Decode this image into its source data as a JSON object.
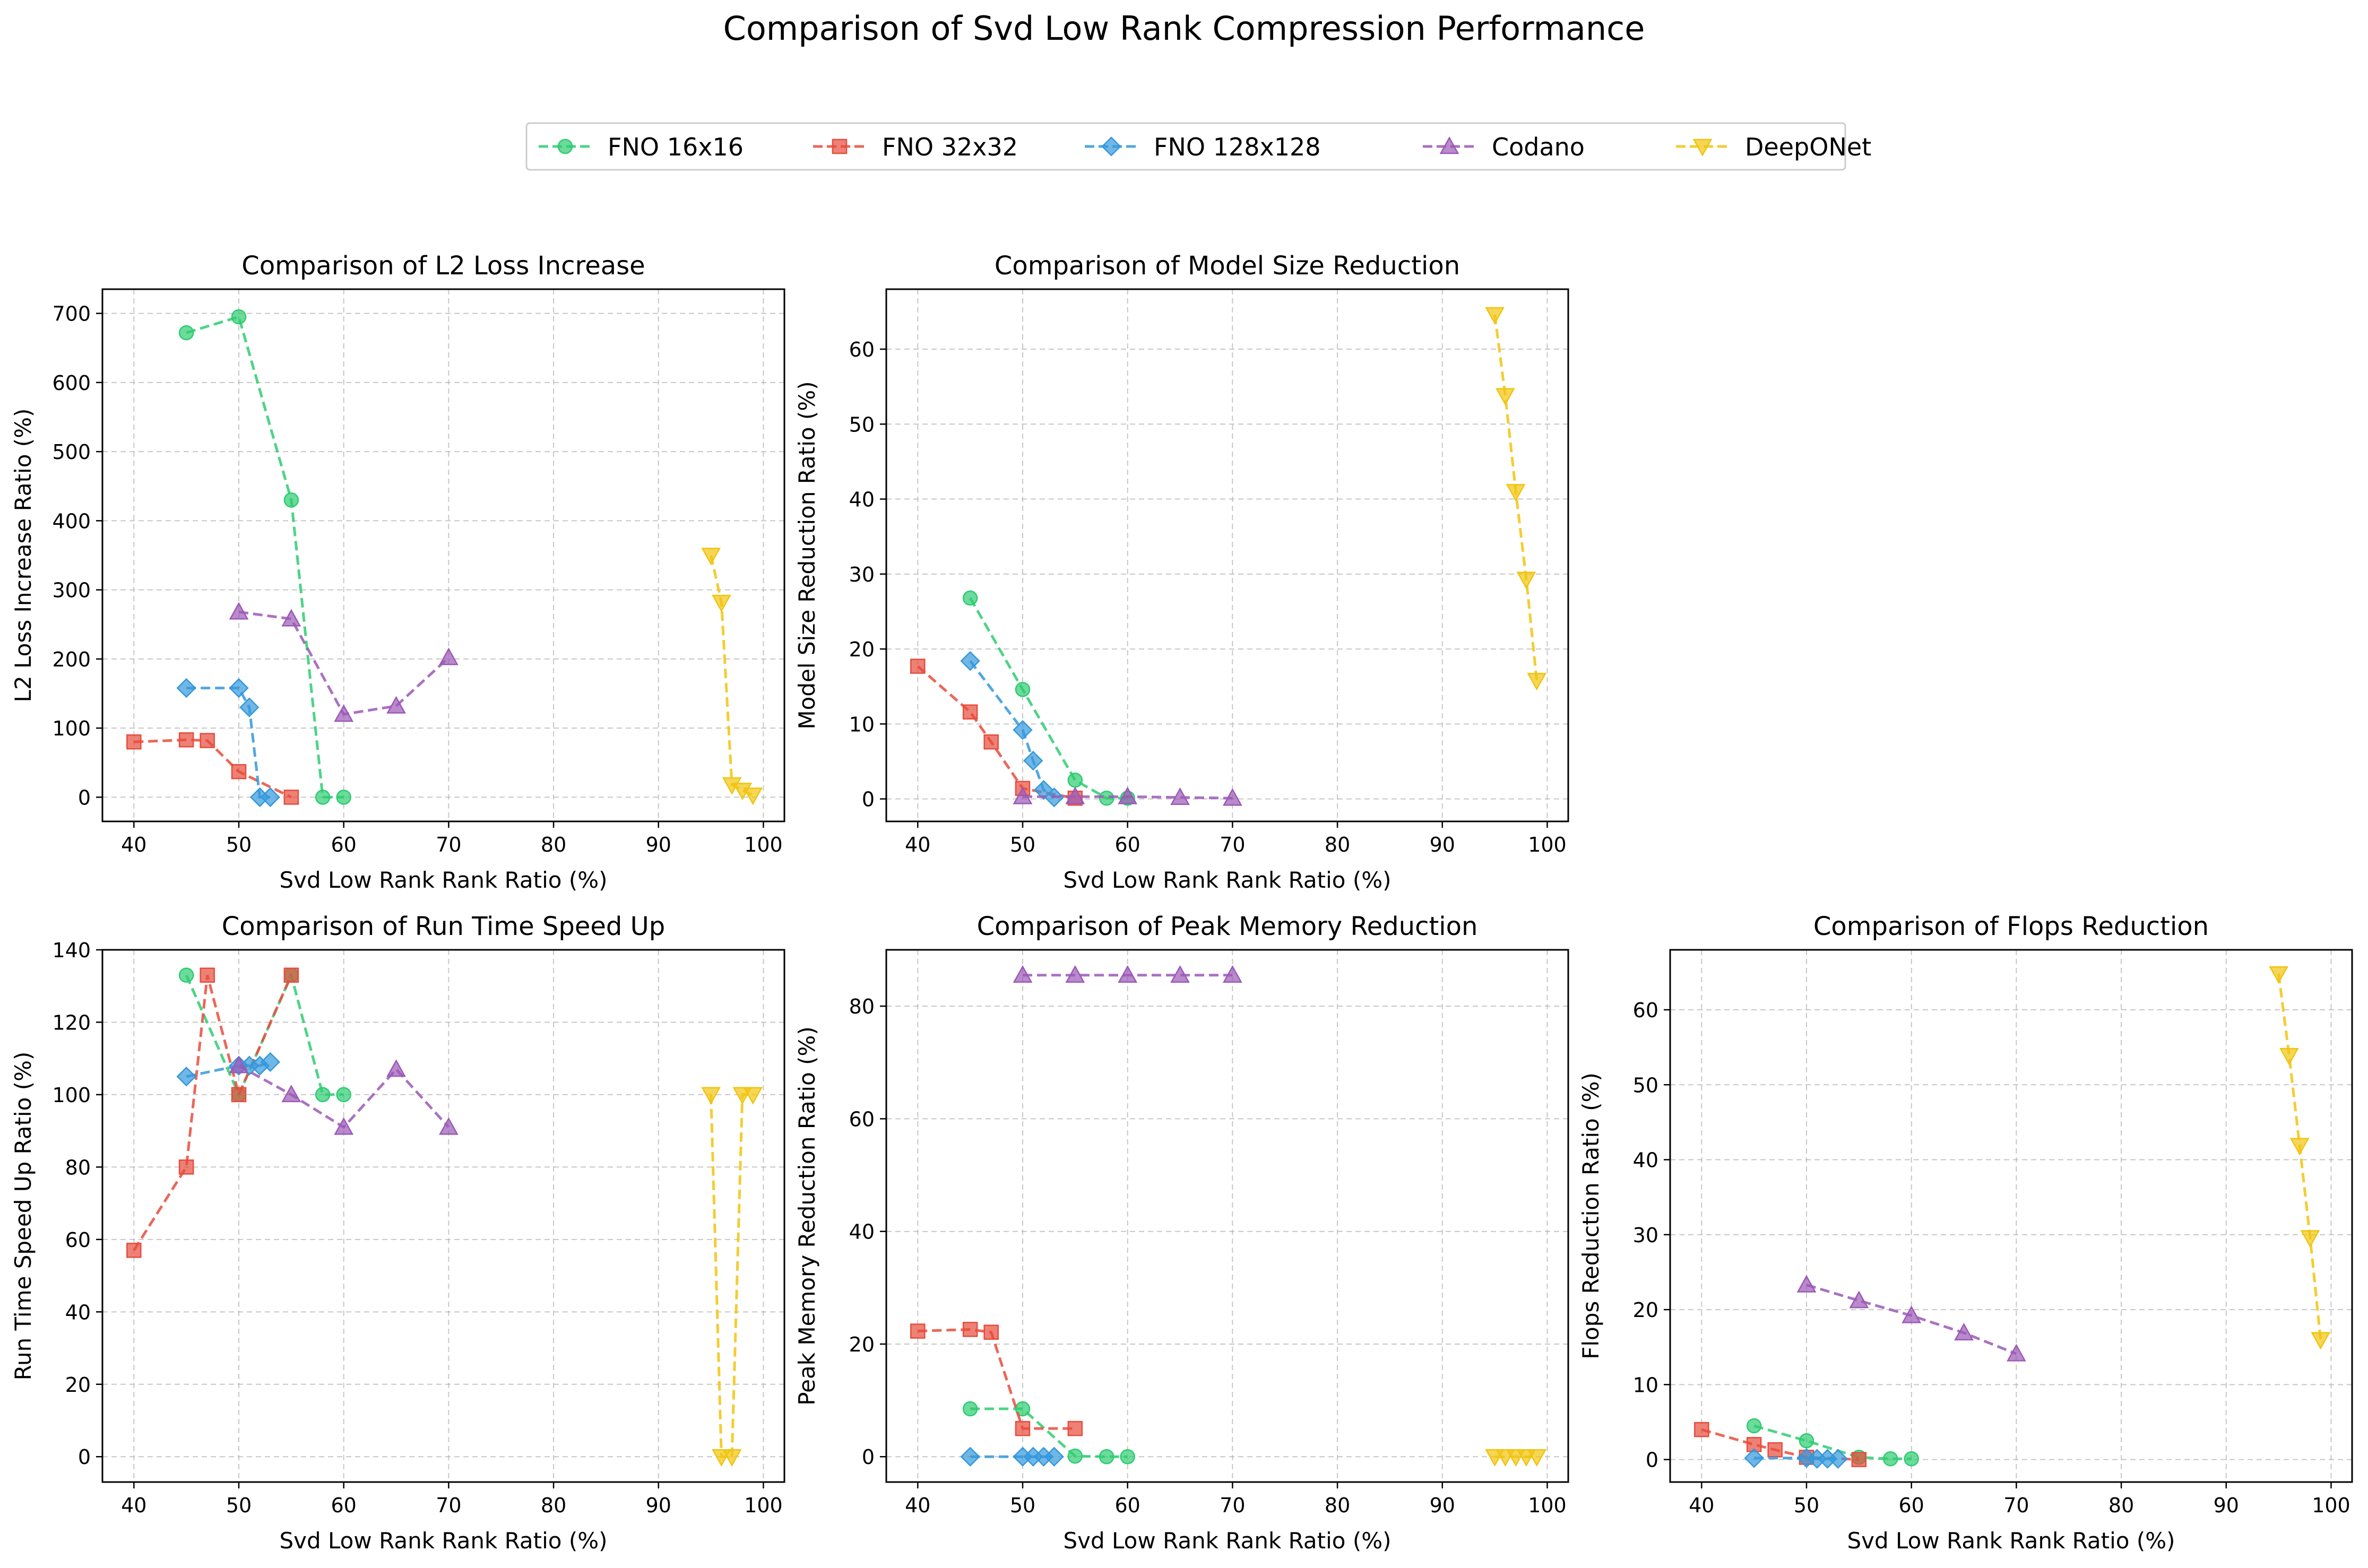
{
  "figure": {
    "title": "Comparison of Svd Low Rank Compression Performance"
  },
  "legend": {
    "placement": "top-center",
    "entries": [
      {
        "name": "FNO 16x16",
        "color": "#2ecc71",
        "marker": "circle"
      },
      {
        "name": "FNO 32x32",
        "color": "#e74c3c",
        "marker": "square"
      },
      {
        "name": "FNO 128x128",
        "color": "#3498db",
        "marker": "diamond"
      },
      {
        "name": "Codano",
        "color": "#9b59b6",
        "marker": "triangle-up"
      },
      {
        "name": "DeepONet",
        "color": "#f1c40f",
        "marker": "triangle-down"
      }
    ]
  },
  "chart_data": [
    {
      "type": "line",
      "title": "Comparison of L2 Loss Increase",
      "xlabel": "Svd Low Rank Rank Ratio (%)",
      "ylabel": "L2 Loss Increase Ratio (%)",
      "xlim": [
        37,
        102
      ],
      "ylim": [
        -35,
        735
      ],
      "xticks": [
        40,
        50,
        60,
        70,
        80,
        90,
        100
      ],
      "yticks": [
        0,
        100,
        200,
        300,
        400,
        500,
        600,
        700
      ],
      "grid": true,
      "series": [
        {
          "name": "FNO 16x16",
          "x": [
            45,
            50,
            55,
            58,
            60
          ],
          "y": [
            672,
            695,
            430,
            0,
            0
          ]
        },
        {
          "name": "FNO 32x32",
          "x": [
            40,
            45,
            47,
            50,
            55
          ],
          "y": [
            80,
            83,
            82,
            37,
            0
          ]
        },
        {
          "name": "FNO 128x128",
          "x": [
            45,
            50,
            51,
            52,
            53
          ],
          "y": [
            158,
            158,
            130,
            0,
            0
          ]
        },
        {
          "name": "Codano",
          "x": [
            50,
            55,
            60,
            65,
            70
          ],
          "y": [
            268,
            258,
            120,
            132,
            202
          ]
        },
        {
          "name": "DeepONet",
          "x": [
            95,
            96,
            97,
            98,
            99
          ],
          "y": [
            350,
            282,
            18,
            10,
            3
          ]
        }
      ]
    },
    {
      "type": "line",
      "title": "Comparison of Model Size Reduction",
      "xlabel": "Svd Low Rank Rank Ratio (%)",
      "ylabel": "Model Size Reduction Ratio (%)",
      "xlim": [
        37,
        102
      ],
      "ylim": [
        -3,
        68
      ],
      "xticks": [
        40,
        50,
        60,
        70,
        80,
        90,
        100
      ],
      "yticks": [
        0,
        10,
        20,
        30,
        40,
        50,
        60
      ],
      "grid": true,
      "series": [
        {
          "name": "FNO 16x16",
          "x": [
            45,
            50,
            55,
            58,
            60
          ],
          "y": [
            26.8,
            14.6,
            2.5,
            0.1,
            0.1
          ]
        },
        {
          "name": "FNO 32x32",
          "x": [
            40,
            45,
            47,
            50,
            55
          ],
          "y": [
            17.7,
            11.6,
            7.6,
            1.4,
            0.1
          ]
        },
        {
          "name": "FNO 128x128",
          "x": [
            45,
            50,
            51,
            52,
            53
          ],
          "y": [
            18.4,
            9.2,
            5.1,
            1.2,
            0.2
          ]
        },
        {
          "name": "Codano",
          "x": [
            50,
            55,
            60,
            65,
            70
          ],
          "y": [
            0.3,
            0.3,
            0.3,
            0.2,
            0.1
          ]
        },
        {
          "name": "DeepONet",
          "x": [
            95,
            96,
            97,
            98,
            99
          ],
          "y": [
            64.6,
            53.8,
            41.0,
            29.3,
            15.8
          ]
        }
      ]
    },
    {
      "type": "line",
      "title": "Comparison of Run Time Speed Up",
      "xlabel": "Svd Low Rank Rank Ratio (%)",
      "ylabel": "Run Time Speed Up Ratio (%)",
      "xlim": [
        37,
        102
      ],
      "ylim": [
        -7,
        140
      ],
      "xticks": [
        40,
        50,
        60,
        70,
        80,
        90,
        100
      ],
      "yticks": [
        0,
        20,
        40,
        60,
        80,
        100,
        120,
        140
      ],
      "grid": true,
      "series": [
        {
          "name": "FNO 16x16",
          "x": [
            45,
            50,
            55,
            58,
            60
          ],
          "y": [
            133,
            100,
            133,
            100,
            100
          ]
        },
        {
          "name": "FNO 32x32",
          "x": [
            40,
            45,
            47,
            50,
            55
          ],
          "y": [
            57,
            80,
            133,
            100,
            133
          ]
        },
        {
          "name": "FNO 128x128",
          "x": [
            45,
            50,
            51,
            52,
            53
          ],
          "y": [
            105,
            108,
            108,
            108,
            109
          ]
        },
        {
          "name": "Codano",
          "x": [
            50,
            55,
            60,
            65,
            70
          ],
          "y": [
            108,
            100,
            91,
            107,
            91
          ]
        },
        {
          "name": "DeepONet",
          "x": [
            95,
            96,
            97,
            98,
            99
          ],
          "y": [
            100,
            0,
            0,
            100,
            100
          ]
        }
      ]
    },
    {
      "type": "line",
      "title": "Comparison of Peak Memory Reduction",
      "xlabel": "Svd Low Rank Rank Ratio (%)",
      "ylabel": "Peak Memory Reduction Ratio (%)",
      "xlim": [
        37,
        102
      ],
      "ylim": [
        -4.5,
        90
      ],
      "xticks": [
        40,
        50,
        60,
        70,
        80,
        90,
        100
      ],
      "yticks": [
        0,
        20,
        40,
        60,
        80
      ],
      "grid": true,
      "series": [
        {
          "name": "FNO 16x16",
          "x": [
            45,
            50,
            55,
            58,
            60
          ],
          "y": [
            8.5,
            8.5,
            0.1,
            0,
            0
          ]
        },
        {
          "name": "FNO 32x32",
          "x": [
            40,
            45,
            47,
            50,
            55
          ],
          "y": [
            22.3,
            22.6,
            22.1,
            5.0,
            5.0
          ]
        },
        {
          "name": "FNO 128x128",
          "x": [
            45,
            50,
            51,
            52,
            53
          ],
          "y": [
            0,
            0,
            0,
            0,
            0
          ]
        },
        {
          "name": "Codano",
          "x": [
            50,
            55,
            60,
            65,
            70
          ],
          "y": [
            85.5,
            85.5,
            85.5,
            85.5,
            85.5
          ]
        },
        {
          "name": "DeepONet",
          "x": [
            95,
            96,
            97,
            98,
            99
          ],
          "y": [
            0,
            0,
            0,
            0,
            0
          ]
        }
      ]
    },
    {
      "type": "line",
      "title": "Comparison of Flops Reduction",
      "xlabel": "Svd Low Rank Rank Ratio (%)",
      "ylabel": "Flops Reduction Ratio (%)",
      "xlim": [
        37,
        102
      ],
      "ylim": [
        -3,
        68
      ],
      "xticks": [
        40,
        50,
        60,
        70,
        80,
        90,
        100
      ],
      "yticks": [
        0,
        10,
        20,
        30,
        40,
        50,
        60
      ],
      "grid": true,
      "series": [
        {
          "name": "FNO 16x16",
          "x": [
            45,
            50,
            55,
            58,
            60
          ],
          "y": [
            4.5,
            2.5,
            0.3,
            0.1,
            0.1
          ]
        },
        {
          "name": "FNO 32x32",
          "x": [
            40,
            45,
            47,
            50,
            55
          ],
          "y": [
            4.0,
            2.0,
            1.3,
            0.3,
            0.0
          ]
        },
        {
          "name": "FNO 128x128",
          "x": [
            45,
            50,
            51,
            52,
            53
          ],
          "y": [
            0.2,
            0.2,
            0.1,
            0.1,
            0.1
          ]
        },
        {
          "name": "Codano",
          "x": [
            50,
            55,
            60,
            65,
            70
          ],
          "y": [
            23.3,
            21.2,
            19.2,
            16.9,
            14.1
          ]
        },
        {
          "name": "DeepONet",
          "x": [
            95,
            96,
            97,
            98,
            99
          ],
          "y": [
            64.8,
            53.9,
            41.9,
            29.6,
            16.0
          ]
        }
      ]
    }
  ]
}
